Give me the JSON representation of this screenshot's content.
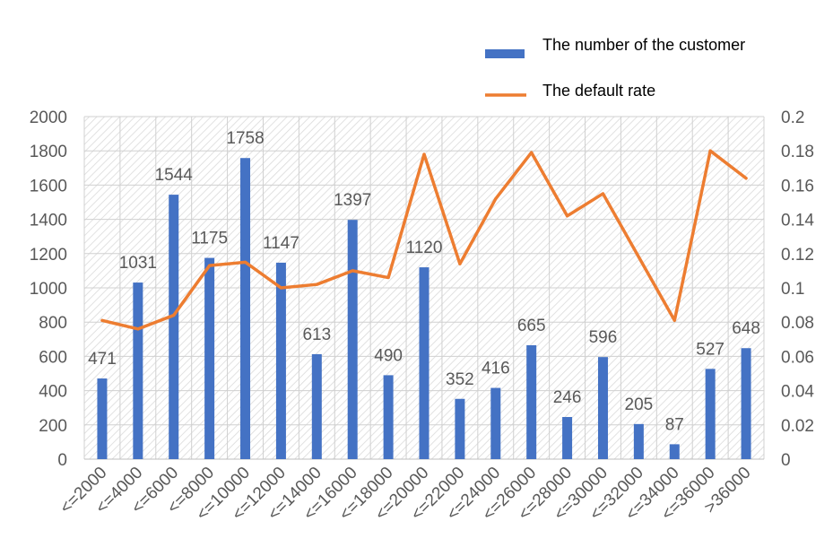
{
  "chart_data": {
    "type": "bar",
    "categories": [
      "<=2000",
      "<=4000",
      "<=6000",
      "<=8000",
      "<=10000",
      "<=12000",
      "<=14000",
      "<=16000",
      "<=18000",
      "<=20000",
      "<=22000",
      "<=24000",
      "<=26000",
      "<=28000",
      "<=30000",
      "<=32000",
      "<=34000",
      "<=36000",
      ">36000"
    ],
    "series": [
      {
        "name": "The number of the customer",
        "type": "bar",
        "axis": "left",
        "color": "#4472C4",
        "values": [
          471,
          1031,
          1544,
          1175,
          1758,
          1147,
          613,
          1397,
          490,
          1120,
          352,
          416,
          665,
          246,
          596,
          205,
          87,
          527,
          648
        ],
        "labels": [
          "471",
          "1031",
          "1544",
          "1175",
          "1758",
          "1147",
          "613",
          "1397",
          "490",
          "1120",
          "352",
          "416",
          "665",
          "246",
          "596",
          "205",
          "87",
          "527",
          "648"
        ]
      },
      {
        "name": "The default rate",
        "type": "line",
        "axis": "right",
        "color": "#ED7D31",
        "values": [
          0.081,
          0.076,
          0.084,
          0.113,
          0.115,
          0.1,
          0.102,
          0.11,
          0.106,
          0.178,
          0.114,
          0.152,
          0.179,
          0.142,
          0.155,
          0.118,
          0.081,
          0.18,
          0.164
        ]
      }
    ],
    "ylim": [
      0,
      2000
    ],
    "y2lim": [
      0,
      0.2
    ],
    "yticks": [
      "0",
      "200",
      "400",
      "600",
      "800",
      "1000",
      "1200",
      "1400",
      "1600",
      "1800",
      "2000"
    ],
    "y2ticks": [
      "0",
      "0.02",
      "0.04",
      "0.06",
      "0.08",
      "0.1",
      "0.12",
      "0.14",
      "0.16",
      "0.18",
      "0.2"
    ],
    "legend_position": "top-right",
    "grid": true,
    "plot_background": "hatched",
    "grid_color": "#D0D0D0",
    "text_color": "#595959"
  }
}
